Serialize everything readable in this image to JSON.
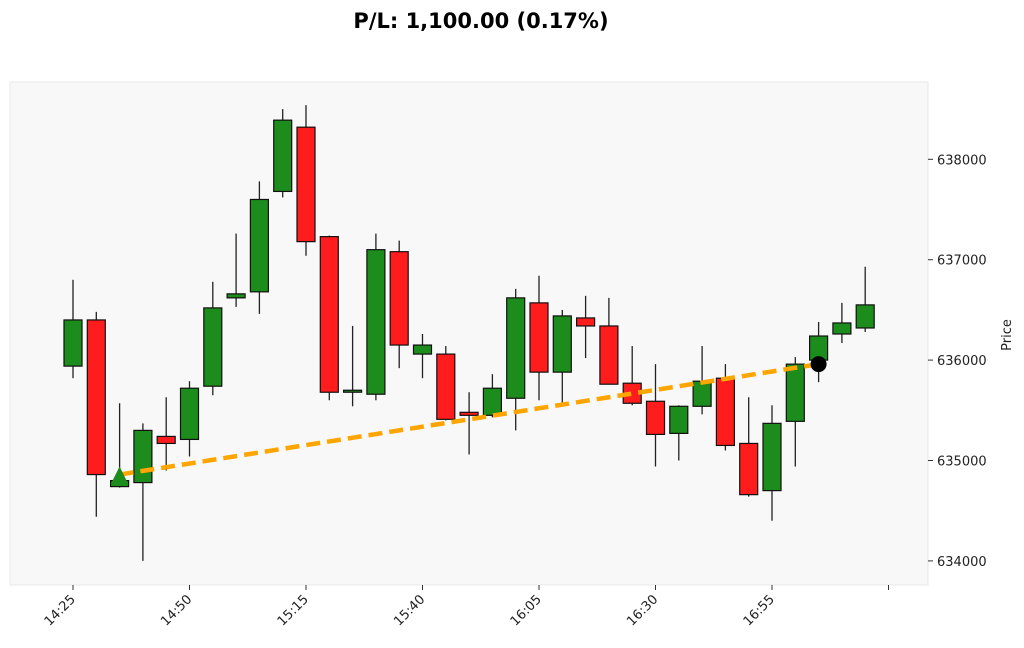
{
  "chart_data": {
    "type": "candlestick",
    "title": "P/L: 1,100.00 (0.17%)",
    "ylabel": "Price",
    "xlabel": "",
    "ylim": [
      633760,
      638770
    ],
    "yticks": [
      634000,
      635000,
      636000,
      637000,
      638000
    ],
    "ytick_labels": [
      "634000",
      "635000",
      "636000",
      "637000",
      "638000"
    ],
    "xtick_labels": [
      "14:25",
      "14:50",
      "15:15",
      "15:40",
      "16:05",
      "16:30",
      "16:55",
      ""
    ],
    "xtick_index": [
      0,
      5,
      10,
      15,
      20,
      25,
      30,
      35
    ],
    "grid": false,
    "colors": {
      "up": "#1c8c1c",
      "down": "#ff1c1c",
      "trade_line": "#ffa500",
      "entry": "#1c8c1c",
      "exit": "#000000",
      "background": "#f8f8f8"
    },
    "candles": [
      {
        "t": "14:25",
        "o": 635940,
        "h": 636800,
        "l": 635820,
        "c": 636400
      },
      {
        "t": "14:30",
        "o": 636400,
        "h": 636480,
        "l": 634440,
        "c": 634860
      },
      {
        "t": "14:35",
        "o": 634740,
        "h": 635570,
        "l": 634730,
        "c": 634800
      },
      {
        "t": "14:40",
        "o": 634780,
        "h": 635370,
        "l": 634000,
        "c": 635300
      },
      {
        "t": "14:45",
        "o": 635240,
        "h": 635630,
        "l": 634900,
        "c": 635170
      },
      {
        "t": "14:50",
        "o": 635210,
        "h": 635790,
        "l": 635040,
        "c": 635720
      },
      {
        "t": "14:55",
        "o": 635740,
        "h": 636780,
        "l": 635650,
        "c": 636520
      },
      {
        "t": "15:00",
        "o": 636620,
        "h": 637260,
        "l": 636530,
        "c": 636660
      },
      {
        "t": "15:05",
        "o": 636680,
        "h": 637780,
        "l": 636460,
        "c": 637600
      },
      {
        "t": "15:10",
        "o": 637680,
        "h": 638500,
        "l": 637620,
        "c": 638390
      },
      {
        "t": "15:15",
        "o": 638320,
        "h": 638540,
        "l": 637040,
        "c": 637180
      },
      {
        "t": "15:20",
        "o": 637230,
        "h": 637240,
        "l": 635600,
        "c": 635680
      },
      {
        "t": "15:25",
        "o": 635680,
        "h": 636340,
        "l": 635540,
        "c": 635700
      },
      {
        "t": "15:30",
        "o": 635660,
        "h": 637260,
        "l": 635600,
        "c": 637100
      },
      {
        "t": "15:35",
        "o": 637080,
        "h": 637190,
        "l": 635920,
        "c": 636150
      },
      {
        "t": "15:40",
        "o": 636060,
        "h": 636260,
        "l": 635820,
        "c": 636150
      },
      {
        "t": "15:45",
        "o": 636060,
        "h": 636140,
        "l": 635400,
        "c": 635410
      },
      {
        "t": "15:50",
        "o": 635480,
        "h": 635680,
        "l": 635060,
        "c": 635450
      },
      {
        "t": "15:55",
        "o": 635450,
        "h": 635860,
        "l": 635430,
        "c": 635720
      },
      {
        "t": "16:00",
        "o": 635620,
        "h": 636710,
        "l": 635300,
        "c": 636620
      },
      {
        "t": "16:05",
        "o": 636570,
        "h": 636840,
        "l": 635600,
        "c": 635880
      },
      {
        "t": "16:10",
        "o": 635880,
        "h": 636500,
        "l": 635560,
        "c": 636440
      },
      {
        "t": "16:15",
        "o": 636420,
        "h": 636640,
        "l": 636020,
        "c": 636340
      },
      {
        "t": "16:20",
        "o": 636340,
        "h": 636620,
        "l": 635760,
        "c": 635760
      },
      {
        "t": "16:25",
        "o": 635770,
        "h": 636140,
        "l": 635550,
        "c": 635570
      },
      {
        "t": "16:30",
        "o": 635590,
        "h": 635960,
        "l": 634940,
        "c": 635260
      },
      {
        "t": "16:35",
        "o": 635270,
        "h": 635550,
        "l": 635000,
        "c": 635540
      },
      {
        "t": "16:40",
        "o": 635540,
        "h": 636140,
        "l": 635460,
        "c": 635790
      },
      {
        "t": "16:45",
        "o": 635820,
        "h": 635960,
        "l": 635100,
        "c": 635150
      },
      {
        "t": "16:50",
        "o": 635170,
        "h": 635630,
        "l": 634640,
        "c": 634660
      },
      {
        "t": "16:55",
        "o": 634700,
        "h": 635550,
        "l": 634400,
        "c": 635370
      },
      {
        "t": "17:00",
        "o": 635390,
        "h": 636030,
        "l": 634940,
        "c": 635960
      },
      {
        "t": "17:05",
        "o": 636000,
        "h": 636380,
        "l": 635780,
        "c": 636240
      },
      {
        "t": "17:10",
        "o": 636260,
        "h": 636570,
        "l": 636170,
        "c": 636370
      },
      {
        "t": "17:15",
        "o": 636320,
        "h": 636930,
        "l": 636280,
        "c": 636550
      }
    ],
    "trade": {
      "entry": {
        "index": 2,
        "price": 634860,
        "marker": "triangle-up"
      },
      "exit": {
        "index": 32,
        "price": 635960,
        "marker": "circle"
      },
      "pl": 1100.0,
      "pl_pct": 0.17
    }
  }
}
